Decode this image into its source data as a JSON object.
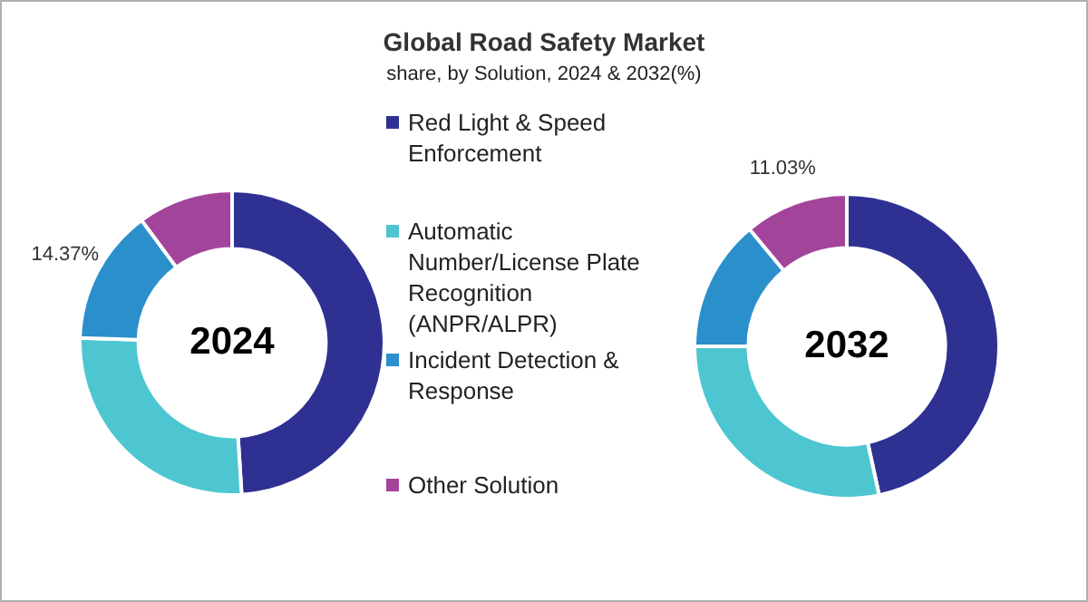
{
  "chart_data": [
    {
      "type": "donut",
      "title": "Global Road Safety Market",
      "subtitle": "share, by Solution, 2024 & 2032(%)",
      "categories": [
        "Red Light & Speed Enforcement",
        "Automatic Number/License Plate Recognition (ANPR/ALPR)",
        "Incident Detection & Response",
        "Other Solution"
      ],
      "values": [
        49,
        26.5,
        14.37,
        10.13
      ],
      "colors": [
        "#2e3192",
        "#4dc6d1",
        "#2b8fcc",
        "#a3449b"
      ],
      "value_labels": [
        null,
        null,
        "14.37%",
        null
      ],
      "annotations": [
        "2024"
      ],
      "legend": "right"
    },
    {
      "type": "donut",
      "categories": [
        null,
        null,
        null,
        null
      ],
      "values": [
        46.6,
        28.4,
        13.97,
        11.03
      ],
      "colors": [
        "#2e3192",
        "#4dc6d1",
        "#2b8fcc",
        "#a3449b"
      ],
      "value_labels": [
        null,
        null,
        null,
        "11.03%"
      ],
      "annotations": [
        "2032"
      ]
    }
  ]
}
